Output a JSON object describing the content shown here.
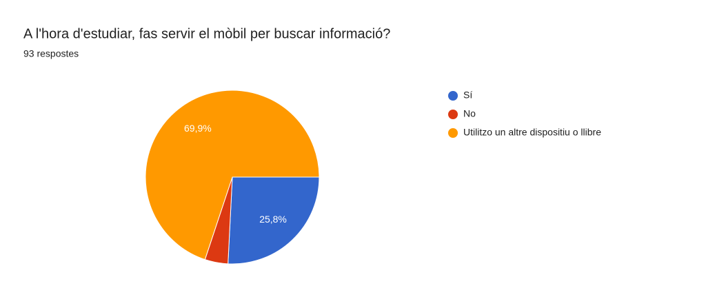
{
  "chart_data": {
    "type": "pie",
    "title": "A l'hora d'estudiar, fas servir el mòbil per buscar informació?",
    "subtitle": "93 respostes",
    "categories": [
      "Sí",
      "No",
      "Utilitzo un altre dispositiu o llibre"
    ],
    "values": [
      25.8,
      4.3,
      69.9
    ],
    "value_labels": [
      "25,8%",
      null,
      "69,9%"
    ],
    "colors": [
      "#3366cc",
      "#dc3912",
      "#ff9900"
    ],
    "legend": "right"
  }
}
